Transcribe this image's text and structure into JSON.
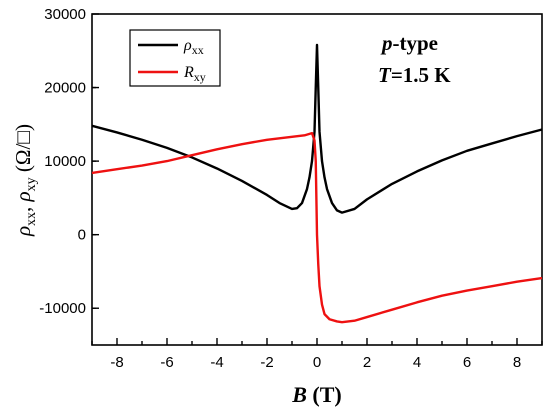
{
  "chart_data": {
    "type": "line",
    "xlim": [
      -9,
      9
    ],
    "ylim": [
      -15000,
      30000
    ],
    "x_ticks": [
      -8,
      -6,
      -4,
      -2,
      0,
      2,
      4,
      6,
      8
    ],
    "y_ticks": [
      -10000,
      0,
      10000,
      20000,
      30000
    ],
    "x_tick_labels": [
      "-8",
      "-6",
      "-4",
      "-2",
      "0",
      "2",
      "4",
      "6",
      "8"
    ],
    "y_tick_labels": [
      "-10000",
      "0",
      "10000",
      "20000",
      "30000"
    ],
    "xlabel": {
      "sym": "B",
      "unit": " (T)"
    },
    "ylabel": {
      "a": "ρ",
      "a_sub": "xx",
      "sep": ", ",
      "b": "ρ",
      "b_sub": "xy",
      "unit": " (Ω/□)"
    },
    "legend_placement": "top-left",
    "annotation": {
      "type_prefix": "p",
      "type_suffix": "-type",
      "temp_sym": "T",
      "temp_value": "=1.5 K"
    },
    "series": [
      {
        "name": "ρxx",
        "legend_symbol": "ρ",
        "legend_sub": "xx",
        "color": "#000000",
        "x": [
          -9,
          -8,
          -7,
          -6,
          -5,
          -4,
          -3,
          -2,
          -1.5,
          -1,
          -0.8,
          -0.6,
          -0.4,
          -0.3,
          -0.2,
          -0.1,
          -0.05,
          0,
          0.05,
          0.1,
          0.2,
          0.3,
          0.4,
          0.6,
          0.8,
          1,
          1.5,
          2,
          3,
          4,
          5,
          6,
          7,
          8,
          9
        ],
        "y": [
          14800,
          13900,
          12900,
          11800,
          10500,
          9000,
          7300,
          5400,
          4300,
          3500,
          3600,
          4300,
          6200,
          7800,
          10000,
          14000,
          20000,
          25800,
          20000,
          14000,
          10000,
          7800,
          6200,
          4300,
          3300,
          3000,
          3500,
          4800,
          6900,
          8600,
          10100,
          11400,
          12400,
          13400,
          14300
        ]
      },
      {
        "name": "Rxy",
        "legend_symbol": "R",
        "legend_sub": "xy",
        "color": "#ee1111",
        "x": [
          -9,
          -8,
          -7,
          -6,
          -5,
          -4,
          -3,
          -2,
          -1,
          -0.5,
          -0.2,
          -0.1,
          -0.05,
          0,
          0.05,
          0.1,
          0.2,
          0.3,
          0.5,
          0.8,
          1,
          1.5,
          2,
          3,
          4,
          5,
          6,
          7,
          8,
          9
        ],
        "y": [
          8400,
          8900,
          9400,
          10000,
          10800,
          11600,
          12300,
          12900,
          13300,
          13500,
          13800,
          12800,
          10000,
          0,
          -4000,
          -7000,
          -9500,
          -10800,
          -11500,
          -11800,
          -11900,
          -11700,
          -11200,
          -10200,
          -9200,
          -8300,
          -7600,
          -7000,
          -6400,
          -5900
        ]
      }
    ]
  }
}
